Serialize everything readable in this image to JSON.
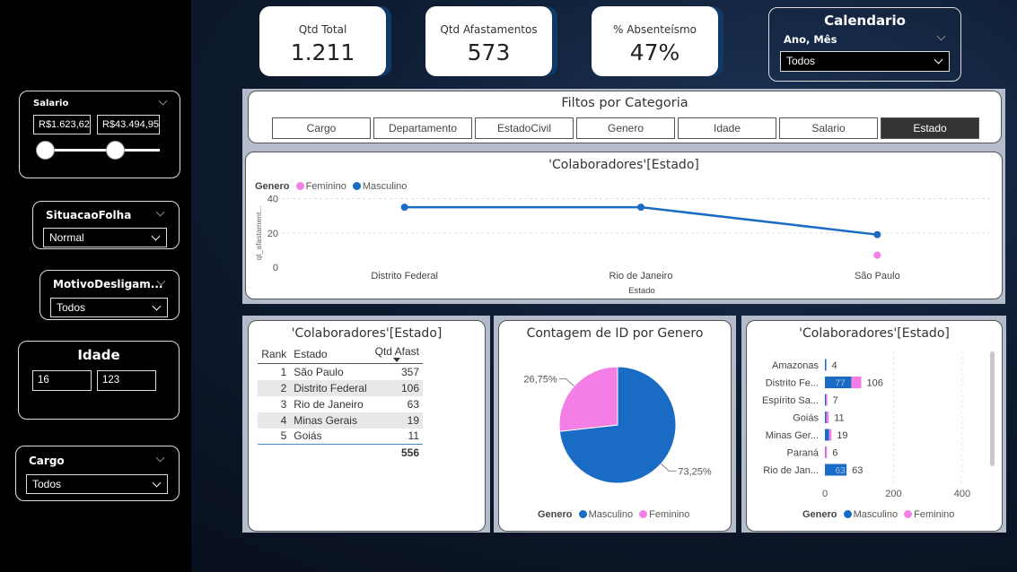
{
  "sidebar": {
    "salario": {
      "title": "Salario",
      "min": "R$1.623,62",
      "max": "R$43.494,95"
    },
    "situacao": {
      "title": "SituacaoFolha",
      "value": "Normal"
    },
    "motivo": {
      "title": "MotivoDesligam...",
      "value": "Todos"
    },
    "idade": {
      "title": "Idade",
      "min": "16",
      "max": "123"
    },
    "cargo": {
      "title": "Cargo",
      "value": "Todos"
    }
  },
  "kpis": [
    {
      "label": "Qtd Total",
      "value": "1.211"
    },
    {
      "label": "Qtd Afastamentos",
      "value": "573"
    },
    {
      "label": "% Absenteísmo",
      "value": "47%"
    }
  ],
  "calendario": {
    "title": "Calendario",
    "field": "Ano, Mês",
    "value": "Todos"
  },
  "filtros": {
    "title": "Filtos por Categoria",
    "tabs": [
      "Cargo",
      "Departamento",
      "EstadoCivil",
      "Genero",
      "Idade",
      "Salario",
      "Estado"
    ],
    "active": "Estado"
  },
  "colors": {
    "masculino": "#1a6bc4",
    "feminino": "#f27ee6"
  },
  "line_chart": {
    "title": "'Colaboradores'[Estado]",
    "legend_title": "Genero",
    "ylabel": "qt_afastament...",
    "xlabel": "Estado",
    "y_ticks": [
      "40",
      "20",
      "0"
    ]
  },
  "table": {
    "title": "'Colaboradores'[Estado]",
    "headers": [
      "Rank",
      "Estado",
      "Qtd Afast"
    ],
    "rows": [
      [
        "1",
        "São Paulo",
        "357"
      ],
      [
        "2",
        "Distrito Federal",
        "106"
      ],
      [
        "3",
        "Rio de Janeiro",
        "63"
      ],
      [
        "4",
        "Minas Gerais",
        "19"
      ],
      [
        "5",
        "Goiás",
        "11"
      ]
    ],
    "total": "556"
  },
  "pie": {
    "title": "Contagem de ID por Genero",
    "legend_title": "Genero"
  },
  "bar": {
    "title": "'Colaboradores'[Estado]",
    "legend_title": "Genero",
    "x_ticks": [
      "0",
      "200",
      "400"
    ]
  },
  "chart_data": [
    {
      "type": "line",
      "title": "'Colaboradores'[Estado]",
      "xlabel": "Estado",
      "ylabel": "qt_afastament...",
      "categories": [
        "Distrito Federal",
        "Rio de Janeiro",
        "São Paulo"
      ],
      "ylim": [
        0,
        45
      ],
      "series": [
        {
          "name": "Masculino",
          "values": [
            35,
            35,
            19
          ]
        },
        {
          "name": "Feminino",
          "values": [
            null,
            null,
            7
          ]
        }
      ]
    },
    {
      "type": "pie",
      "title": "Contagem de ID por Genero",
      "series": [
        {
          "name": "Masculino",
          "value": 73.25,
          "label": "73,25%"
        },
        {
          "name": "Feminino",
          "value": 26.75,
          "label": "26,75%"
        }
      ]
    },
    {
      "type": "bar",
      "orientation": "horizontal",
      "title": "'Colaboradores'[Estado]",
      "categories": [
        "Amazonas",
        "Distrito Fe...",
        "Espírito Sa...",
        "Goiás",
        "Minas Ger...",
        "Paraná",
        "Rio de Jan..."
      ],
      "totals": [
        4,
        106,
        7,
        11,
        19,
        6,
        63
      ],
      "xlim": [
        0,
        450
      ],
      "series": [
        {
          "name": "Masculino",
          "values": [
            4,
            77,
            3,
            4,
            12,
            1,
            63
          ]
        },
        {
          "name": "Feminino",
          "values": [
            0,
            29,
            4,
            7,
            7,
            5,
            0
          ]
        }
      ],
      "inner_labels": [
        "",
        "77",
        "",
        "",
        "",
        "",
        "63"
      ]
    }
  ]
}
